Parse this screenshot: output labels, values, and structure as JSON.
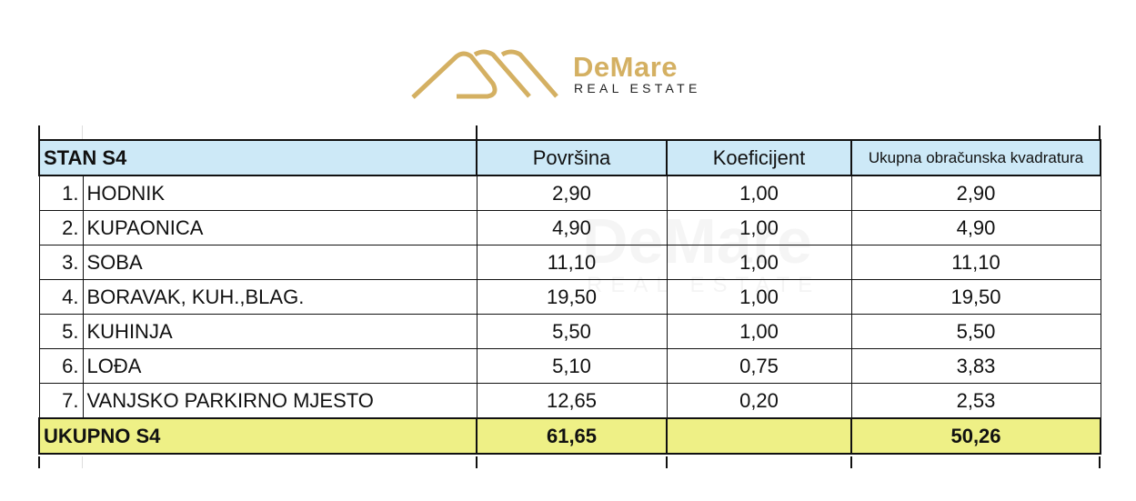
{
  "logo": {
    "name": "DeMare",
    "subtitle": "REAL ESTATE",
    "color": "#d4b062"
  },
  "table": {
    "title": "STAN S4",
    "headers": [
      "Površina",
      "Koeficijent",
      "Ukupna obračunska  kvadratura"
    ],
    "rows": [
      {
        "no": "1.",
        "name": "HODNIK",
        "area": "2,90",
        "coef": "1,00",
        "total": "2,90"
      },
      {
        "no": "2.",
        "name": "KUPAONICA",
        "area": "4,90",
        "coef": "1,00",
        "total": "4,90"
      },
      {
        "no": "3.",
        "name": "SOBA",
        "area": "11,10",
        "coef": "1,00",
        "total": "11,10"
      },
      {
        "no": "4.",
        "name": "BORAVAK, KUH.,BLAG.",
        "area": "19,50",
        "coef": "1,00",
        "total": "19,50"
      },
      {
        "no": "5.",
        "name": "KUHINJA",
        "area": "5,50",
        "coef": "1,00",
        "total": "5,50"
      },
      {
        "no": "6.",
        "name": "LOĐA",
        "area": "5,10",
        "coef": "0,75",
        "total": "3,83"
      },
      {
        "no": "7.",
        "name": "VANJSKO PARKIRNO MJESTO",
        "area": "12,65",
        "coef": "0,20",
        "total": "2,53"
      }
    ],
    "total": {
      "label": "UKUPNO S4",
      "area": "61,65",
      "coef": "",
      "total": "50,26"
    },
    "header_color": "#cde9f7",
    "total_color": "#eef086"
  }
}
